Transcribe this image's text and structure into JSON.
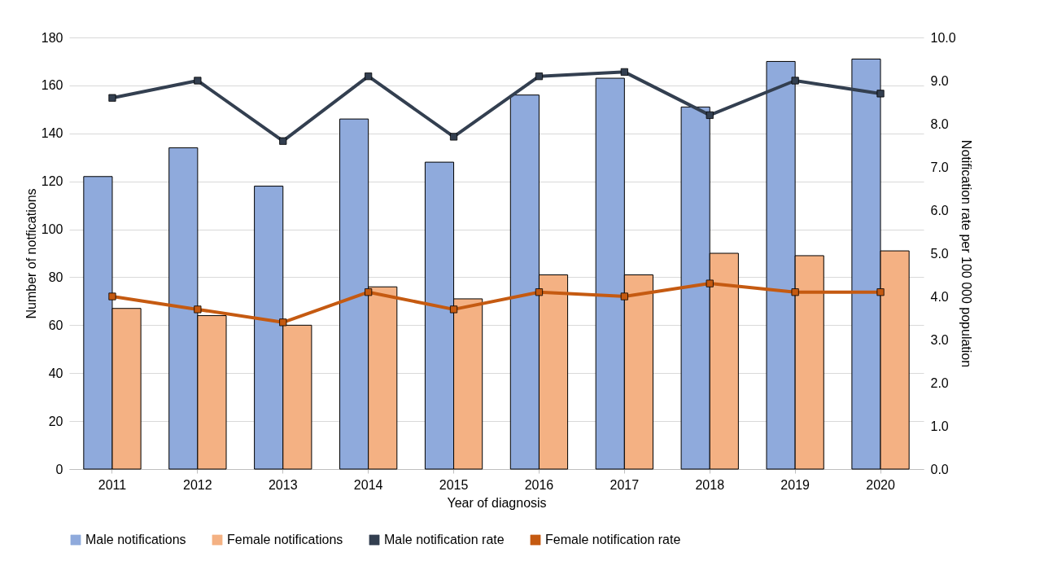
{
  "chart_data": {
    "type": "bar",
    "xlabel": "Year of diagnosis",
    "ylabel": "Number of notfications",
    "y2label": "Notification rate per 100 000 population",
    "categories": [
      "2011",
      "2012",
      "2013",
      "2014",
      "2015",
      "2016",
      "2017",
      "2018",
      "2019",
      "2020"
    ],
    "series": [
      {
        "name": "Male notifications",
        "color": "#8faadc",
        "values": [
          122,
          134,
          118,
          146,
          128,
          156,
          163,
          151,
          170,
          171
        ]
      },
      {
        "name": "Female notifications",
        "color": "#f4b183",
        "values": [
          67,
          64,
          60,
          76,
          71,
          81,
          81,
          90,
          89,
          91
        ]
      },
      {
        "name": "Male notification rate",
        "type": "line",
        "axis": "y2",
        "color": "#333f50",
        "values": [
          8.6,
          9.0,
          7.6,
          9.1,
          7.7,
          9.1,
          9.2,
          8.2,
          9.0,
          8.7
        ]
      },
      {
        "name": "Female notification rate",
        "type": "line",
        "axis": "y2",
        "color": "#c55a11",
        "values": [
          4.0,
          3.7,
          3.4,
          4.1,
          3.7,
          4.1,
          4.0,
          4.3,
          4.1,
          4.1
        ]
      }
    ],
    "ylim": [
      0,
      180
    ],
    "yticks": [
      0,
      20,
      40,
      60,
      80,
      100,
      120,
      140,
      160,
      180
    ],
    "y2lim": [
      0,
      10
    ],
    "y2ticks": [
      {
        "value": 0,
        "label": "0.0"
      },
      {
        "value": 1,
        "label": "1.0"
      },
      {
        "value": 2,
        "label": "2.0"
      },
      {
        "value": 3,
        "label": "3.0"
      },
      {
        "value": 4,
        "label": "4.0"
      },
      {
        "value": 5,
        "label": "5.0"
      },
      {
        "value": 6,
        "label": "6.0"
      },
      {
        "value": 7,
        "label": "7.0"
      },
      {
        "value": 8,
        "label": "8.0"
      },
      {
        "value": 9,
        "label": "9.0"
      },
      {
        "value": 10,
        "label": "10.0"
      }
    ],
    "grid": "y",
    "legend": "bottom",
    "marker": "square",
    "line_style": "solid"
  }
}
